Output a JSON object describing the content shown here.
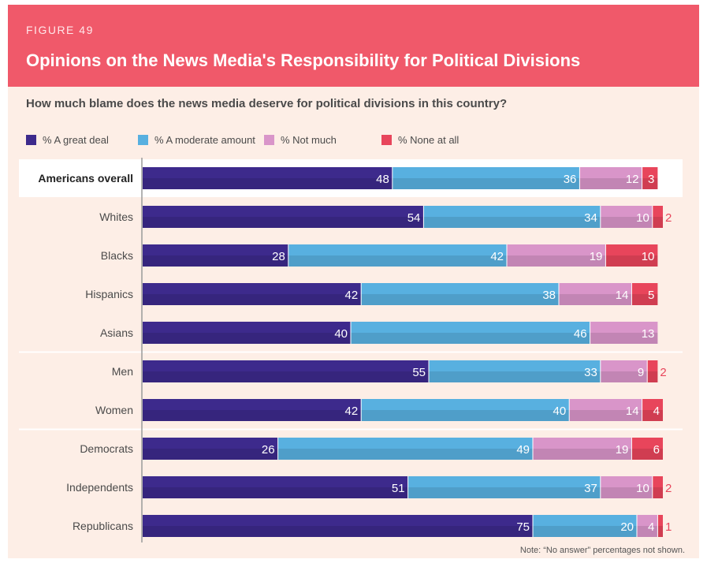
{
  "figure": {
    "label": "FIGURE 49",
    "title": "Opinions on the News Media's Responsibility for Political Divisions",
    "question": "How much blame does the news media deserve for political divisions in this country?",
    "note": "Note: “No answer” percentages not shown."
  },
  "colors": {
    "header": "#f0596a",
    "background": "#fdeee6",
    "great_deal": "#3d2a8c",
    "moderate": "#58b0e0",
    "not_much": "#d995c9",
    "none": "#e8455b"
  },
  "chart_data": {
    "type": "bar",
    "orientation": "horizontal",
    "stacked": true,
    "xlim": [
      0,
      100
    ],
    "legend_placement": "top",
    "grid": false,
    "categories": [
      "Americans overall",
      "Whites",
      "Blacks",
      "Hispanics",
      "Asians",
      "Men",
      "Women",
      "Democrats",
      "Independents",
      "Republicans"
    ],
    "series": [
      {
        "name": "% A great deal",
        "values": [
          48,
          54,
          28,
          42,
          40,
          55,
          42,
          26,
          51,
          75
        ]
      },
      {
        "name": "% A moderate amount",
        "values": [
          36,
          34,
          42,
          38,
          46,
          33,
          40,
          49,
          37,
          20
        ]
      },
      {
        "name": "% Not much",
        "values": [
          12,
          10,
          19,
          14,
          13,
          9,
          14,
          19,
          10,
          4
        ]
      },
      {
        "name": "% None at all",
        "values": [
          3,
          2,
          10,
          5,
          0,
          2,
          4,
          6,
          2,
          1
        ]
      }
    ],
    "group_dividers_after": [
      "Asians",
      "Women"
    ],
    "highlighted_category": "Americans overall"
  }
}
